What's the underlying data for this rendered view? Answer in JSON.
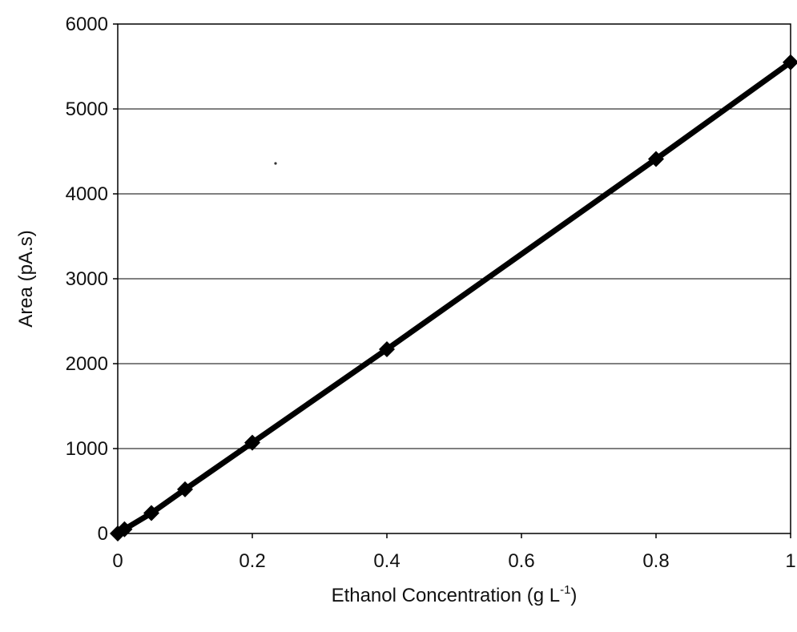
{
  "chart_data": {
    "type": "line",
    "title": "",
    "xlabel": "Ethanol Concentration (g L",
    "xlabel_sup": "-1",
    "xlabel_close": ")",
    "ylabel": "Area (pA.s)",
    "xlim": [
      0,
      1
    ],
    "ylim": [
      0,
      6000
    ],
    "x_ticks": [
      "0",
      "0.2",
      "0.4",
      "0.6",
      "0.8",
      "1"
    ],
    "y_ticks": [
      "0",
      "1000",
      "2000",
      "3000",
      "4000",
      "5000",
      "6000"
    ],
    "grid": "horizontal",
    "legend": "none",
    "marker": "diamond",
    "line_color": "#000000",
    "series": [
      {
        "x": [
          0,
          0.01,
          0.05,
          0.1,
          0.2,
          0.4,
          0.8,
          1.0
        ],
        "y": [
          0,
          50,
          240,
          520,
          1070,
          2170,
          4410,
          5550
        ]
      }
    ]
  }
}
